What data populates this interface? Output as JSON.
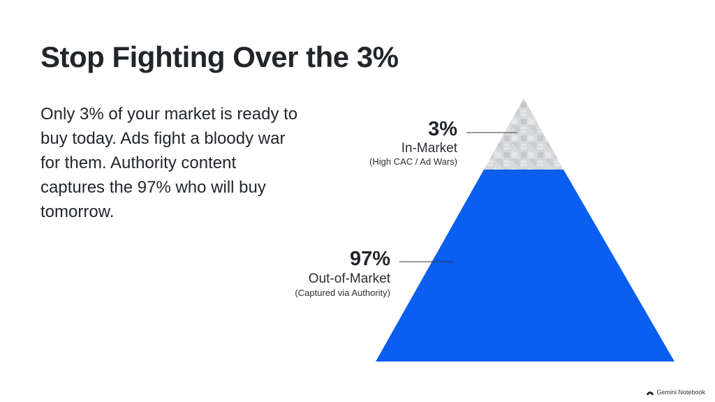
{
  "slide": {
    "title": "Stop Fighting Over the 3%",
    "body": "Only 3% of your market is ready to buy today. Ads fight a bloody war for them. Authority content captures the 97% who will buy tomorrow."
  },
  "pyramid": {
    "top": {
      "percent": "3%",
      "name": "In-Market",
      "subtitle": "(High CAC / Ad Wars)",
      "color": "#d6d8db"
    },
    "bottom": {
      "percent": "97%",
      "name": "Out-of-Market",
      "subtitle": "(Captured via Authority)",
      "color": "#0a5ef0"
    }
  },
  "footer": {
    "brand": "Gemini Notebook",
    "icon": "notebook-logo-icon"
  }
}
